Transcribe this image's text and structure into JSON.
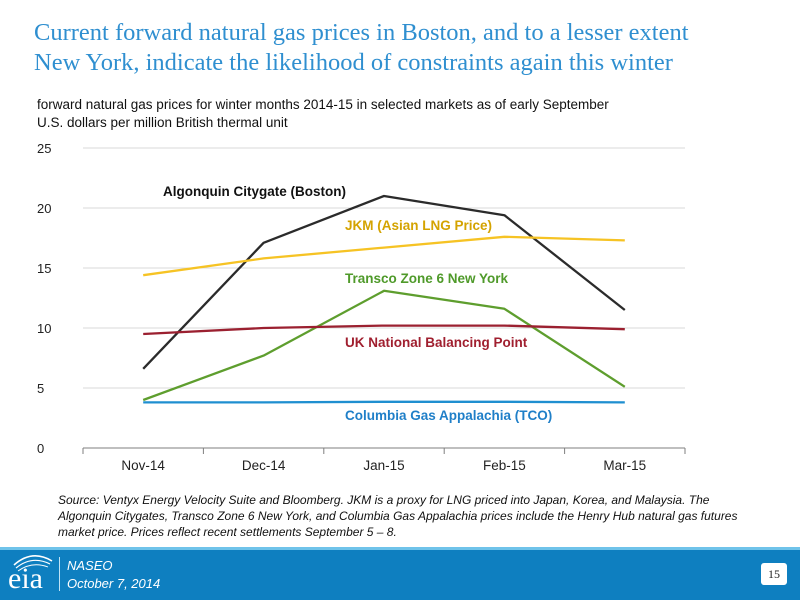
{
  "slide": {
    "title_line1": "Current forward natural gas prices in Boston, and to a lesser extent",
    "title_line2": "New York, indicate the likelihood of constraints again this winter",
    "title_color": "#2f8fd0"
  },
  "chart_data": {
    "type": "line",
    "title": "forward natural gas prices for winter months 2014-15 in selected markets as of early September",
    "subtitle": "U.S. dollars per million British thermal unit",
    "categories": [
      "Nov-14",
      "Dec-14",
      "Jan-15",
      "Feb-15",
      "Mar-15"
    ],
    "ylim": [
      0,
      25
    ],
    "yticks": [
      0,
      5,
      10,
      15,
      20,
      25
    ],
    "grid": true,
    "series": [
      {
        "name": "Algonquin Citygate (Boston)",
        "color": "#2b2b2b",
        "label_color": "#111111",
        "values": [
          6.6,
          17.1,
          21.0,
          19.4,
          11.5
        ]
      },
      {
        "name": "JKM (Asian LNG Price)",
        "color": "#f6c324",
        "label_color": "#d4a300",
        "values": [
          14.4,
          15.8,
          16.7,
          17.6,
          17.3
        ]
      },
      {
        "name": "Transco Zone 6 New York",
        "color": "#5e9e2e",
        "label_color": "#4f9a2a",
        "values": [
          4.0,
          7.7,
          13.1,
          11.6,
          5.1
        ]
      },
      {
        "name": "UK National Balancing Point",
        "color": "#9b2030",
        "label_color": "#a01f2f",
        "values": [
          9.5,
          10.0,
          10.2,
          10.2,
          9.9
        ]
      },
      {
        "name": "Columbia Gas Appalachia (TCO)",
        "color": "#1f8fd0",
        "label_color": "#1f7fc8",
        "values": [
          3.8,
          3.8,
          3.85,
          3.85,
          3.8
        ]
      }
    ]
  },
  "source": {
    "text": "Source: Ventyx Energy Velocity Suite and Bloomberg. JKM is a proxy for LNG priced into Japan, Korea, and Malaysia. The Algonquin Citygates, Transco Zone 6 New York, and Columbia Gas Appalachia prices include the Henry Hub natural gas futures market price. Prices reflect recent settlements September 5 – 8."
  },
  "footer": {
    "logo": "eia",
    "org": "NASEO",
    "date": "October 7, 2014",
    "page_number": "15",
    "bar_color": "#0e7fc0"
  }
}
